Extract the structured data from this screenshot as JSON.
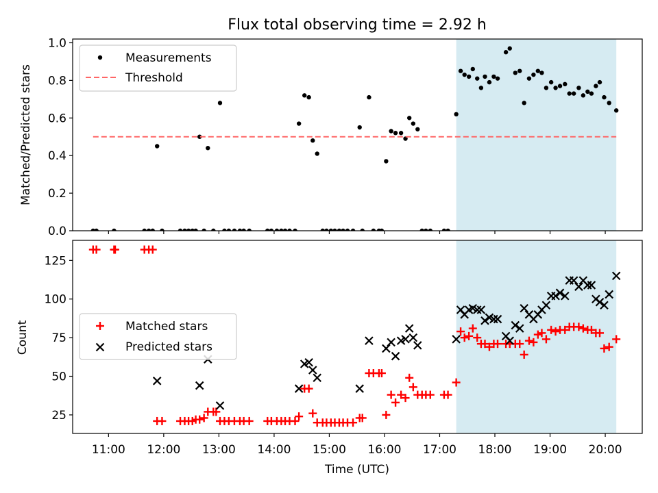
{
  "title": "Flux total observing time = 2.92 h",
  "chart_data": [
    {
      "type": "scatter",
      "panel": "top",
      "ylabel": "Matched/Predicted stars",
      "ylim": [
        0,
        1.02
      ],
      "yticks": [
        0.0,
        0.2,
        0.4,
        0.6,
        0.8,
        1.0
      ],
      "ytick_labels": [
        "0.0",
        "0.2",
        "0.4",
        "0.6",
        "0.8",
        "1.0"
      ],
      "xlim": [
        10.35,
        20.67
      ],
      "legend_position": "upper-left",
      "shaded_interval": {
        "start": 17.3,
        "end": 20.2,
        "color": "#add8e6"
      },
      "series": [
        {
          "name": "Measurements",
          "marker": "dot",
          "color": "#000000",
          "points": [
            [
              10.72,
              0
            ],
            [
              10.78,
              0
            ],
            [
              11.1,
              0
            ],
            [
              11.65,
              0
            ],
            [
              11.73,
              0
            ],
            [
              11.8,
              0
            ],
            [
              11.88,
              0.45
            ],
            [
              11.97,
              0
            ],
            [
              12.3,
              0
            ],
            [
              12.38,
              0
            ],
            [
              12.45,
              0
            ],
            [
              12.52,
              0
            ],
            [
              12.58,
              0
            ],
            [
              12.65,
              0.5
            ],
            [
              12.73,
              0
            ],
            [
              12.8,
              0.44
            ],
            [
              12.9,
              0
            ],
            [
              13.02,
              0.68
            ],
            [
              13.1,
              0
            ],
            [
              13.18,
              0
            ],
            [
              13.28,
              0
            ],
            [
              13.38,
              0
            ],
            [
              13.45,
              0
            ],
            [
              13.55,
              0
            ],
            [
              13.88,
              0
            ],
            [
              13.95,
              0
            ],
            [
              14.05,
              0
            ],
            [
              14.13,
              0
            ],
            [
              14.2,
              0
            ],
            [
              14.28,
              0
            ],
            [
              14.38,
              0
            ],
            [
              14.45,
              0.57
            ],
            [
              14.55,
              0.72
            ],
            [
              14.63,
              0.71
            ],
            [
              14.7,
              0.48
            ],
            [
              14.78,
              0.41
            ],
            [
              14.88,
              0
            ],
            [
              14.95,
              0
            ],
            [
              15.03,
              0
            ],
            [
              15.1,
              0
            ],
            [
              15.18,
              0
            ],
            [
              15.25,
              0
            ],
            [
              15.33,
              0
            ],
            [
              15.43,
              0
            ],
            [
              15.55,
              0.55
            ],
            [
              15.6,
              0
            ],
            [
              15.72,
              0.71
            ],
            [
              15.8,
              0
            ],
            [
              15.9,
              0
            ],
            [
              15.95,
              0
            ],
            [
              16.03,
              0.37
            ],
            [
              16.12,
              0.53
            ],
            [
              16.2,
              0.52
            ],
            [
              16.3,
              0.52
            ],
            [
              16.38,
              0.49
            ],
            [
              16.45,
              0.6
            ],
            [
              16.52,
              0.57
            ],
            [
              16.6,
              0.54
            ],
            [
              16.68,
              0
            ],
            [
              16.75,
              0
            ],
            [
              16.83,
              0
            ],
            [
              17.08,
              0
            ],
            [
              17.15,
              0
            ],
            [
              17.3,
              0.62
            ],
            [
              17.38,
              0.85
            ],
            [
              17.45,
              0.83
            ],
            [
              17.53,
              0.82
            ],
            [
              17.6,
              0.86
            ],
            [
              17.68,
              0.81
            ],
            [
              17.75,
              0.76
            ],
            [
              17.82,
              0.82
            ],
            [
              17.9,
              0.79
            ],
            [
              17.98,
              0.82
            ],
            [
              18.05,
              0.81
            ],
            [
              18.2,
              0.95
            ],
            [
              18.27,
              0.97
            ],
            [
              18.37,
              0.84
            ],
            [
              18.45,
              0.85
            ],
            [
              18.53,
              0.68
            ],
            [
              18.62,
              0.81
            ],
            [
              18.7,
              0.83
            ],
            [
              18.78,
              0.85
            ],
            [
              18.85,
              0.84
            ],
            [
              18.93,
              0.76
            ],
            [
              19.02,
              0.79
            ],
            [
              19.1,
              0.76
            ],
            [
              19.18,
              0.77
            ],
            [
              19.27,
              0.78
            ],
            [
              19.35,
              0.73
            ],
            [
              19.43,
              0.73
            ],
            [
              19.52,
              0.76
            ],
            [
              19.6,
              0.72
            ],
            [
              19.68,
              0.74
            ],
            [
              19.75,
              0.73
            ],
            [
              19.83,
              0.77
            ],
            [
              19.9,
              0.79
            ],
            [
              19.98,
              0.71
            ],
            [
              20.07,
              0.68
            ],
            [
              20.2,
              0.64
            ]
          ]
        },
        {
          "name": "Threshold",
          "line_style": "dashed",
          "color": "#ff6666",
          "x": [
            10.72,
            20.2
          ],
          "y": [
            0.5,
            0.5
          ]
        }
      ]
    },
    {
      "type": "scatter",
      "panel": "bottom",
      "ylabel": "Count",
      "xlabel": "Time (UTC)",
      "ylim": [
        13,
        138
      ],
      "yticks": [
        25,
        50,
        75,
        100,
        125
      ],
      "ytick_labels": [
        "25",
        "50",
        "75",
        "100",
        "125"
      ],
      "xlim": [
        10.35,
        20.67
      ],
      "xticks": [
        11,
        12,
        13,
        14,
        15,
        16,
        17,
        18,
        19,
        20
      ],
      "xtick_labels": [
        "11:00",
        "12:00",
        "13:00",
        "14:00",
        "15:00",
        "16:00",
        "17:00",
        "18:00",
        "19:00",
        "20:00"
      ],
      "legend_position": "center-left",
      "shaded_interval": {
        "start": 17.3,
        "end": 20.2,
        "color": "#add8e6"
      },
      "series": [
        {
          "name": "Matched stars",
          "marker": "plus",
          "color": "#ff0000",
          "points": [
            [
              10.72,
              132
            ],
            [
              10.78,
              132
            ],
            [
              11.1,
              132
            ],
            [
              11.12,
              132
            ],
            [
              11.65,
              132
            ],
            [
              11.73,
              132
            ],
            [
              11.8,
              132
            ],
            [
              11.88,
              21
            ],
            [
              11.97,
              21
            ],
            [
              12.3,
              21
            ],
            [
              12.38,
              21
            ],
            [
              12.45,
              21
            ],
            [
              12.52,
              21
            ],
            [
              12.58,
              22
            ],
            [
              12.65,
              22
            ],
            [
              12.73,
              23
            ],
            [
              12.8,
              27
            ],
            [
              12.9,
              27
            ],
            [
              12.95,
              27
            ],
            [
              13.02,
              21
            ],
            [
              13.1,
              21
            ],
            [
              13.18,
              21
            ],
            [
              13.28,
              21
            ],
            [
              13.38,
              21
            ],
            [
              13.45,
              21
            ],
            [
              13.55,
              21
            ],
            [
              13.88,
              21
            ],
            [
              13.95,
              21
            ],
            [
              14.05,
              21
            ],
            [
              14.13,
              21
            ],
            [
              14.2,
              21
            ],
            [
              14.28,
              21
            ],
            [
              14.38,
              21
            ],
            [
              14.45,
              24
            ],
            [
              14.55,
              42
            ],
            [
              14.63,
              42
            ],
            [
              14.7,
              26
            ],
            [
              14.78,
              20
            ],
            [
              14.88,
              20
            ],
            [
              14.95,
              20
            ],
            [
              15.03,
              20
            ],
            [
              15.1,
              20
            ],
            [
              15.18,
              20
            ],
            [
              15.25,
              20
            ],
            [
              15.33,
              20
            ],
            [
              15.43,
              20
            ],
            [
              15.55,
              23
            ],
            [
              15.6,
              23
            ],
            [
              15.72,
              52
            ],
            [
              15.8,
              52
            ],
            [
              15.9,
              52
            ],
            [
              15.95,
              52
            ],
            [
              16.03,
              25
            ],
            [
              16.12,
              38
            ],
            [
              16.2,
              33
            ],
            [
              16.3,
              38
            ],
            [
              16.38,
              36
            ],
            [
              16.45,
              49
            ],
            [
              16.52,
              43
            ],
            [
              16.6,
              38
            ],
            [
              16.68,
              38
            ],
            [
              16.75,
              38
            ],
            [
              16.83,
              38
            ],
            [
              17.08,
              38
            ],
            [
              17.15,
              38
            ],
            [
              17.3,
              46
            ],
            [
              17.38,
              79
            ],
            [
              17.45,
              75
            ],
            [
              17.53,
              76
            ],
            [
              17.6,
              81
            ],
            [
              17.68,
              75
            ],
            [
              17.75,
              71
            ],
            [
              17.82,
              71
            ],
            [
              17.9,
              69
            ],
            [
              17.98,
              71
            ],
            [
              18.05,
              71
            ],
            [
              18.2,
              71
            ],
            [
              18.27,
              71
            ],
            [
              18.37,
              71
            ],
            [
              18.45,
              71
            ],
            [
              18.53,
              64
            ],
            [
              18.62,
              73
            ],
            [
              18.7,
              72
            ],
            [
              18.78,
              77
            ],
            [
              18.85,
              78
            ],
            [
              18.93,
              74
            ],
            [
              19.02,
              80
            ],
            [
              19.1,
              79
            ],
            [
              19.18,
              80
            ],
            [
              19.27,
              80
            ],
            [
              19.35,
              82
            ],
            [
              19.43,
              82
            ],
            [
              19.52,
              82
            ],
            [
              19.6,
              81
            ],
            [
              19.68,
              80
            ],
            [
              19.75,
              80
            ],
            [
              19.83,
              78
            ],
            [
              19.9,
              78
            ],
            [
              19.98,
              68
            ],
            [
              20.07,
              69
            ],
            [
              20.2,
              74
            ]
          ]
        },
        {
          "name": "Predicted stars",
          "marker": "x",
          "color": "#000000",
          "points": [
            [
              11.88,
              47
            ],
            [
              12.65,
              44
            ],
            [
              12.8,
              61
            ],
            [
              13.02,
              31
            ],
            [
              14.45,
              42
            ],
            [
              14.55,
              58
            ],
            [
              14.63,
              59
            ],
            [
              14.7,
              54
            ],
            [
              14.78,
              49
            ],
            [
              15.55,
              42
            ],
            [
              15.72,
              73
            ],
            [
              16.03,
              68
            ],
            [
              16.12,
              72
            ],
            [
              16.2,
              63
            ],
            [
              16.3,
              73
            ],
            [
              16.38,
              74
            ],
            [
              16.45,
              81
            ],
            [
              16.52,
              75
            ],
            [
              16.6,
              70
            ],
            [
              17.3,
              74
            ],
            [
              17.38,
              93
            ],
            [
              17.45,
              90
            ],
            [
              17.53,
              93
            ],
            [
              17.6,
              94
            ],
            [
              17.68,
              93
            ],
            [
              17.75,
              93
            ],
            [
              17.82,
              86
            ],
            [
              17.9,
              88
            ],
            [
              17.98,
              87
            ],
            [
              18.05,
              87
            ],
            [
              18.2,
              76
            ],
            [
              18.27,
              73
            ],
            [
              18.37,
              83
            ],
            [
              18.45,
              81
            ],
            [
              18.53,
              94
            ],
            [
              18.62,
              90
            ],
            [
              18.7,
              87
            ],
            [
              18.78,
              90
            ],
            [
              18.85,
              93
            ],
            [
              18.93,
              96
            ],
            [
              19.02,
              102
            ],
            [
              19.1,
              102
            ],
            [
              19.18,
              104
            ],
            [
              19.27,
              102
            ],
            [
              19.35,
              112
            ],
            [
              19.43,
              112
            ],
            [
              19.52,
              108
            ],
            [
              19.6,
              112
            ],
            [
              19.68,
              109
            ],
            [
              19.75,
              109
            ],
            [
              19.83,
              100
            ],
            [
              19.9,
              98
            ],
            [
              19.98,
              96
            ],
            [
              20.07,
              103
            ],
            [
              20.2,
              115
            ]
          ]
        }
      ]
    }
  ]
}
